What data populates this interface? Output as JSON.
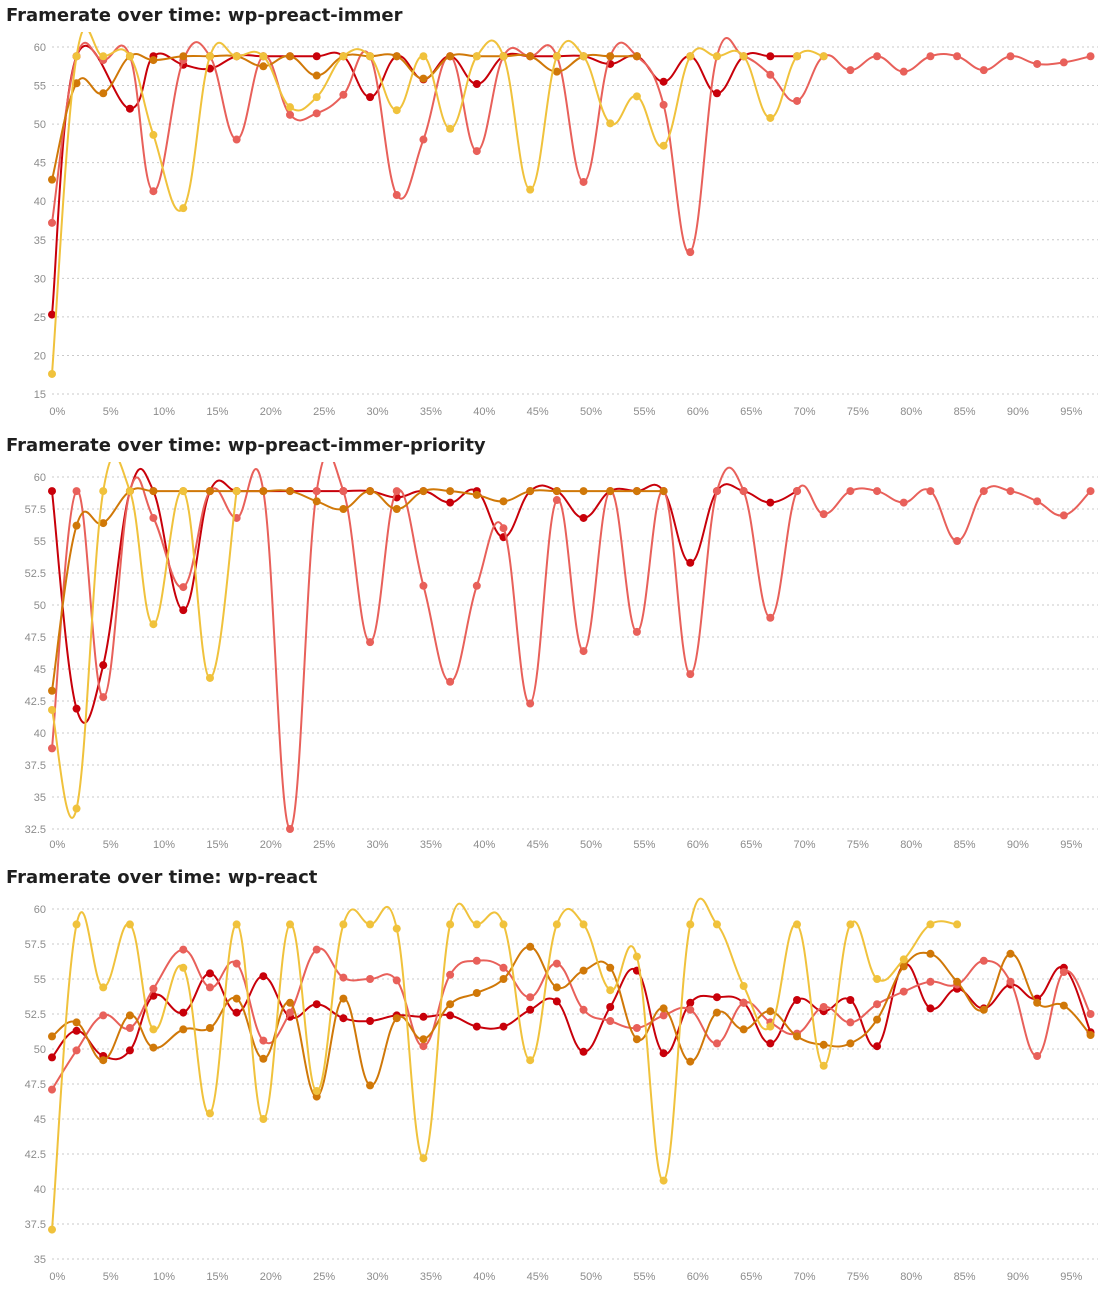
{
  "charts_titles": [
    "Framerate over time: wp-preact-immer",
    "Framerate over time: wp-preact-immer-priority",
    "Framerate over time: wp-react"
  ],
  "series_colors": {
    "dark_red": "#c8000a",
    "salmon": "#e8605a",
    "orange": "#d07808",
    "yellow": "#f0c23c"
  },
  "chart_data": [
    {
      "type": "line",
      "title": "Framerate over time: wp-preact-immer",
      "xlabel": "",
      "ylabel": "",
      "x_ticks": [
        "0%",
        "5%",
        "10%",
        "15%",
        "20%",
        "25%",
        "30%",
        "35%",
        "40%",
        "45%",
        "50%",
        "55%",
        "60%",
        "65%",
        "70%",
        "75%",
        "80%",
        "85%",
        "90%",
        "95%"
      ],
      "y_ticks": [
        15,
        20,
        25,
        30,
        35,
        40,
        45,
        50,
        55,
        60
      ],
      "ylim": [
        15,
        60
      ],
      "xlim": [
        -0.5,
        97.5
      ],
      "grid": true,
      "legend": "none",
      "series": [
        {
          "color": "#c8000a",
          "x": [
            -0.5,
            1.8,
            6.8,
            9,
            11.8,
            14.3,
            16.8,
            19.3,
            21.8,
            24.3,
            26.8,
            29.3,
            31.8,
            34.3,
            36.8,
            39.3,
            41.8,
            44.3,
            46.8,
            49.3,
            51.8,
            54.3,
            56.8,
            59.3,
            61.8,
            64.3,
            66.8,
            69.3
          ],
          "y": [
            25.3,
            58.8,
            52,
            58.8,
            57.7,
            57.2,
            58.8,
            58.8,
            58.8,
            58.8,
            58.8,
            53.5,
            58.8,
            55.8,
            58.8,
            55.2,
            58.8,
            58.8,
            58.8,
            58.8,
            57.8,
            58.8,
            55.5,
            58.8,
            54,
            58.8,
            58.8,
            58.8
          ]
        },
        {
          "color": "#e8605a",
          "x": [
            -0.5,
            1.8,
            4.3,
            6.8,
            9,
            11.8,
            14.3,
            16.8,
            19.3,
            21.8,
            24.3,
            26.8,
            29.3,
            31.8,
            34.3,
            36.8,
            39.3,
            41.8,
            44.3,
            46.8,
            49.3,
            51.8,
            54.3,
            56.8,
            59.3,
            61.8,
            64.3,
            66.8,
            69.3,
            71.8,
            74.3,
            76.8,
            79.3,
            81.8,
            84.3,
            86.8,
            89.3,
            91.8,
            94.3,
            96.8
          ],
          "y": [
            37.2,
            58.8,
            58.3,
            58.8,
            41.3,
            58.3,
            58.8,
            48,
            58.8,
            51.2,
            51.4,
            53.8,
            58.8,
            40.8,
            48,
            58.8,
            46.5,
            58.8,
            58.8,
            58.8,
            42.5,
            58.8,
            58.8,
            52.5,
            33.4,
            58.8,
            58.8,
            56.4,
            53,
            58.8,
            57,
            58.8,
            56.8,
            58.8,
            58.8,
            57,
            58.8,
            57.8,
            58,
            58.8
          ]
        },
        {
          "color": "#d07808",
          "x": [
            -0.5,
            1.8,
            4.3,
            6.8,
            9,
            11.8,
            14.3,
            16.8,
            19.3,
            21.8,
            24.3,
            26.8,
            29.3,
            31.8,
            34.3,
            36.8,
            39.3,
            41.8,
            44.3,
            46.8,
            49.3,
            51.8,
            54.3
          ],
          "y": [
            42.8,
            55.3,
            54,
            58.8,
            58.3,
            58.8,
            58.8,
            58.8,
            57.5,
            58.8,
            56.3,
            58.8,
            58.8,
            58.8,
            55.9,
            58.8,
            58.8,
            58.8,
            58.8,
            56.8,
            58.8,
            58.8,
            58.8
          ]
        },
        {
          "color": "#f0c23c",
          "x": [
            -0.5,
            1.8,
            4.3,
            6.8,
            9,
            11.8,
            14.3,
            16.8,
            19.3,
            21.8,
            24.3,
            26.8,
            29.3,
            31.8,
            34.3,
            36.8,
            39.3,
            41.8,
            44.3,
            46.8,
            49.3,
            51.8,
            54.3,
            56.8,
            59.3,
            61.8,
            64.3,
            66.8,
            69.3,
            71.8
          ],
          "y": [
            17.6,
            58.8,
            58.8,
            58.8,
            48.6,
            39.1,
            58.8,
            58.8,
            58.8,
            52.2,
            53.5,
            58.8,
            58.8,
            51.8,
            58.8,
            49.4,
            58.8,
            58.8,
            41.5,
            58.8,
            58.8,
            50.1,
            53.6,
            47.2,
            58.8,
            58.8,
            58.8,
            50.8,
            58.8,
            58.8
          ]
        }
      ]
    },
    {
      "type": "line",
      "title": "Framerate over time: wp-preact-immer-priority",
      "xlabel": "",
      "ylabel": "",
      "x_ticks": [
        "0%",
        "5%",
        "10%",
        "15%",
        "20%",
        "25%",
        "30%",
        "35%",
        "40%",
        "45%",
        "50%",
        "55%",
        "60%",
        "65%",
        "70%",
        "75%",
        "80%",
        "85%",
        "90%",
        "95%"
      ],
      "y_ticks": [
        32.5,
        35,
        37.5,
        40,
        42.5,
        45,
        47.5,
        50,
        52.5,
        55,
        57.5,
        60
      ],
      "ylim": [
        32.5,
        60
      ],
      "xlim": [
        -0.5,
        97.5
      ],
      "grid": true,
      "legend": "none",
      "series": [
        {
          "color": "#c8000a",
          "x": [
            -0.5,
            1.8,
            4.3,
            6.8,
            9,
            11.8,
            14.3,
            16.8,
            19.3,
            21.8,
            24.3,
            26.8,
            29.3,
            31.8,
            34.3,
            36.8,
            39.3,
            41.8,
            44.3,
            46.8,
            49.3,
            51.8,
            54.3,
            56.8,
            59.3,
            61.8,
            64.3,
            66.8,
            69.3
          ],
          "y": [
            58.9,
            41.9,
            45.3,
            58.9,
            58.9,
            49.6,
            58.9,
            58.9,
            58.9,
            58.9,
            58.9,
            58.9,
            58.9,
            58.4,
            58.9,
            58,
            58.9,
            55.3,
            58.9,
            58.9,
            56.8,
            58.9,
            58.9,
            58.9,
            53.3,
            58.9,
            58.9,
            58,
            58.9
          ]
        },
        {
          "color": "#e8605a",
          "x": [
            -0.5,
            1.8,
            4.3,
            6.8,
            9,
            11.8,
            14.3,
            16.8,
            19.3,
            21.8,
            24.3,
            26.8,
            29.3,
            31.8,
            34.3,
            36.8,
            39.3,
            41.8,
            44.3,
            46.8,
            49.3,
            51.8,
            54.3,
            56.8,
            59.3,
            61.8,
            64.3,
            66.8,
            69.3,
            71.8,
            74.3,
            76.8,
            79.3,
            81.8,
            84.3,
            86.8,
            89.3,
            91.8,
            94.3,
            96.8
          ],
          "y": [
            38.8,
            58.9,
            42.8,
            58.9,
            56.8,
            51.4,
            58.9,
            56.8,
            58.9,
            32.5,
            58.9,
            58.9,
            47.1,
            58.9,
            51.5,
            44,
            51.5,
            56,
            42.3,
            58.2,
            46.4,
            58.9,
            47.9,
            58.9,
            44.6,
            58.9,
            58.9,
            49,
            58.9,
            57.1,
            58.9,
            58.9,
            58,
            58.9,
            55,
            58.9,
            58.9,
            58.1,
            57,
            58.9
          ]
        },
        {
          "color": "#d07808",
          "x": [
            -0.5,
            1.8,
            4.3,
            6.8,
            9,
            11.8,
            14.3,
            16.8,
            19.3,
            21.8,
            24.3,
            26.8,
            29.3,
            31.8,
            34.3,
            36.8,
            39.3,
            41.8,
            44.3,
            46.8,
            49.3,
            51.8,
            54.3,
            56.8
          ],
          "y": [
            43.3,
            56.2,
            56.4,
            58.9,
            58.9,
            58.9,
            58.9,
            58.9,
            58.9,
            58.9,
            58.1,
            57.5,
            58.9,
            57.5,
            58.9,
            58.9,
            58.6,
            58.1,
            58.9,
            58.9,
            58.9,
            58.9,
            58.9,
            58.9
          ]
        },
        {
          "color": "#f0c23c",
          "x": [
            -0.5,
            1.8,
            4.3,
            6.8,
            9,
            11.8,
            14.3,
            16.8
          ],
          "y": [
            41.8,
            34.1,
            58.9,
            58.9,
            48.5,
            58.9,
            44.3,
            58.9
          ]
        }
      ]
    },
    {
      "type": "line",
      "title": "Framerate over time: wp-react",
      "xlabel": "",
      "ylabel": "",
      "x_ticks": [
        "0%",
        "5%",
        "10%",
        "15%",
        "20%",
        "25%",
        "30%",
        "35%",
        "40%",
        "45%",
        "50%",
        "55%",
        "60%",
        "65%",
        "70%",
        "75%",
        "80%",
        "85%",
        "90%",
        "95%"
      ],
      "y_ticks": [
        35,
        37.5,
        40,
        42.5,
        45,
        47.5,
        50,
        52.5,
        55,
        57.5,
        60
      ],
      "ylim": [
        35,
        60
      ],
      "xlim": [
        -0.5,
        97.5
      ],
      "grid": true,
      "legend": "none",
      "series": [
        {
          "color": "#c8000a",
          "x": [
            -0.5,
            1.8,
            4.3,
            6.8,
            9,
            11.8,
            14.3,
            16.8,
            19.3,
            21.8,
            24.3,
            26.8,
            29.3,
            31.8,
            34.3,
            36.8,
            39.3,
            41.8,
            44.3,
            46.8,
            49.3,
            51.8,
            54.3,
            56.8,
            59.3,
            61.8,
            64.3,
            66.8,
            69.3,
            71.8,
            74.3,
            76.8,
            79.3,
            81.8,
            84.3,
            86.8,
            89.3,
            91.8,
            94.3,
            96.8
          ],
          "y": [
            49.4,
            51.3,
            49.5,
            49.9,
            53.8,
            52.6,
            55.4,
            52.6,
            55.2,
            52.3,
            53.2,
            52.2,
            52,
            52.4,
            52.3,
            52.4,
            51.6,
            51.6,
            52.8,
            53.4,
            49.8,
            53,
            55.6,
            49.7,
            53.3,
            53.7,
            53.3,
            50.4,
            53.5,
            52.7,
            53.5,
            50.2,
            56,
            52.9,
            54.3,
            52.9,
            54.6,
            53.6,
            55.8,
            51.2
          ]
        },
        {
          "color": "#e8605a",
          "x": [
            -0.5,
            1.8,
            4.3,
            6.8,
            9,
            11.8,
            14.3,
            16.8,
            19.3,
            21.8,
            24.3,
            26.8,
            29.3,
            31.8,
            34.3,
            36.8,
            39.3,
            41.8,
            44.3,
            46.8,
            49.3,
            51.8,
            54.3,
            56.8,
            59.3,
            61.8,
            64.3,
            66.8,
            69.3,
            71.8,
            74.3,
            76.8,
            79.3,
            81.8,
            84.3,
            86.8,
            89.3,
            91.8,
            94.3,
            96.8
          ],
          "y": [
            47.1,
            49.9,
            52.4,
            51.5,
            54.3,
            57.1,
            54.4,
            56.1,
            50.6,
            52.6,
            57.1,
            55.1,
            55,
            54.9,
            50.2,
            55.3,
            56.3,
            55.8,
            53.7,
            56.1,
            52.8,
            52,
            51.5,
            52.4,
            52.8,
            50.4,
            53.3,
            51.9,
            51.1,
            53,
            51.9,
            53.2,
            54.1,
            54.8,
            54.6,
            56.3,
            54.8,
            49.5,
            55.5,
            52.5
          ]
        },
        {
          "color": "#d07808",
          "x": [
            -0.5,
            1.8,
            4.3,
            6.8,
            9,
            11.8,
            14.3,
            16.8,
            19.3,
            21.8,
            24.3,
            26.8,
            29.3,
            31.8,
            34.3,
            36.8,
            39.3,
            41.8,
            44.3,
            46.8,
            49.3,
            51.8,
            54.3,
            56.8,
            59.3,
            61.8,
            64.3,
            66.8,
            69.3,
            71.8,
            74.3,
            76.8,
            79.3,
            81.8,
            84.3,
            86.8,
            89.3,
            91.8,
            94.3,
            96.8
          ],
          "y": [
            50.9,
            51.9,
            49.2,
            52.4,
            50.1,
            51.4,
            51.5,
            53.6,
            49.3,
            53.3,
            46.6,
            53.6,
            47.4,
            52.2,
            50.7,
            53.2,
            54,
            55,
            57.3,
            54.4,
            55.6,
            55.8,
            50.7,
            52.9,
            49.1,
            52.6,
            51.4,
            52.7,
            50.9,
            50.3,
            50.4,
            52.1,
            55.9,
            56.8,
            54.8,
            52.8,
            56.8,
            53.3,
            53.1,
            51
          ]
        },
        {
          "color": "#f0c23c",
          "x": [
            -0.5,
            1.8,
            4.3,
            6.8,
            9,
            11.8,
            14.3,
            16.8,
            19.3,
            21.8,
            24.3,
            26.8,
            29.3,
            31.8,
            34.3,
            36.8,
            39.3,
            41.8,
            44.3,
            46.8,
            49.3,
            51.8,
            54.3,
            56.8,
            59.3,
            61.8,
            64.3,
            66.8,
            69.3,
            71.8,
            74.3,
            76.8,
            79.3,
            81.8,
            84.3
          ],
          "y": [
            37.1,
            58.9,
            54.4,
            58.9,
            51.4,
            55.8,
            45.4,
            58.9,
            45,
            58.9,
            47,
            58.9,
            58.9,
            58.6,
            42.2,
            58.9,
            58.9,
            58.9,
            49.2,
            58.9,
            58.9,
            54.2,
            56.6,
            40.6,
            58.9,
            58.9,
            54.5,
            51.6,
            58.9,
            48.8,
            58.9,
            55,
            56.4,
            58.9,
            58.9
          ]
        }
      ]
    }
  ]
}
